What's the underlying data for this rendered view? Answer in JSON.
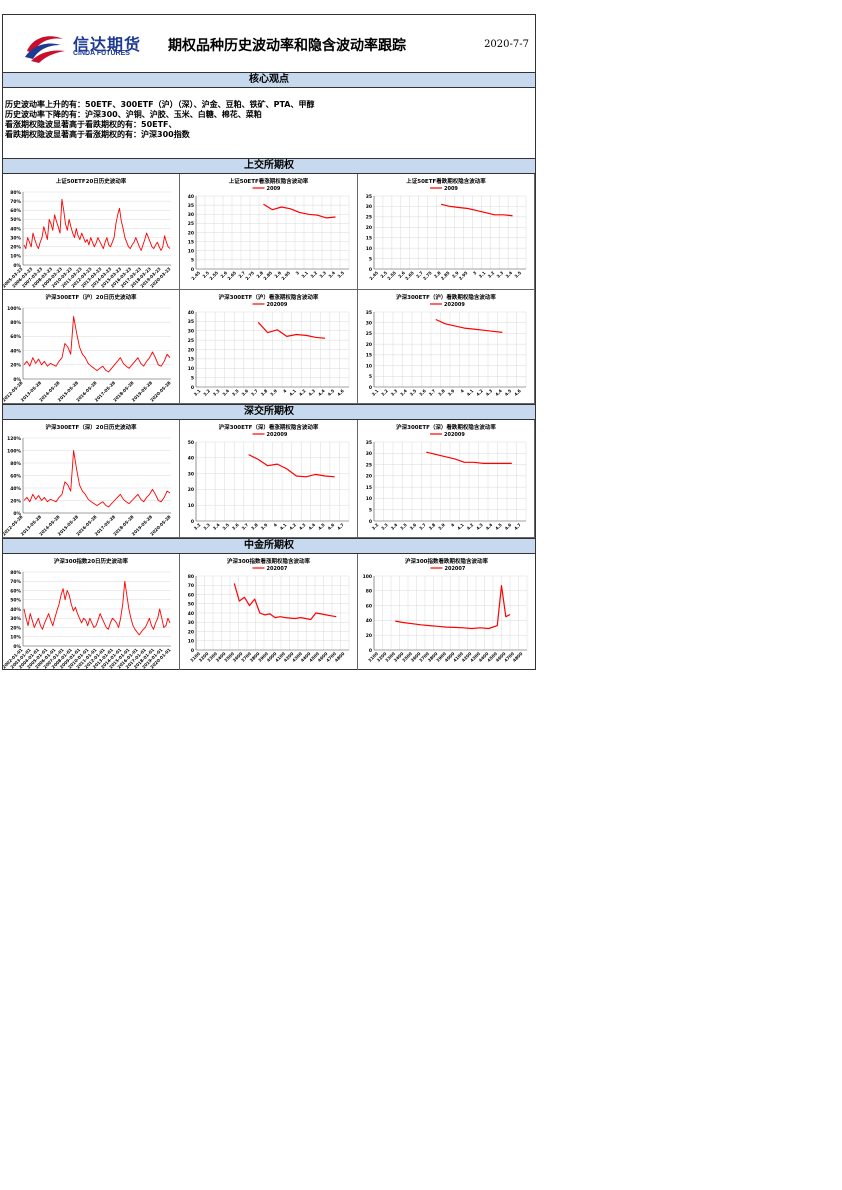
{
  "header": {
    "logo_cn": "信达期货",
    "logo_en": "CINDA FUTURES",
    "title": "期权品种历史波动率和隐含波动率跟踪",
    "date": "2020-7-7"
  },
  "sections": {
    "core": "核心观点",
    "sse": "上交所期权",
    "szse": "深交所期权",
    "cffex": "中金所期权"
  },
  "core_lines": [
    "历史波动率上升的有：50ETF、300ETF（沪）（深）、沪金、豆粕、铁矿、PTA、甲醇",
    "历史波动率下降的有：沪深300、沪铜、沪胶、玉米、白糖、棉花、菜粕",
    "看涨期权隐波显著高于看跌期权的有：50ETF、",
    "看跌期权隐波显著高于看涨期权的有：沪深300指数"
  ],
  "colors": {
    "series": "#ff0000",
    "band": "#c7d9ee",
    "logo": "#1f3a93"
  },
  "chart_data": [
    {
      "type": "line",
      "id": "c1",
      "title": "上证50ETF20日历史波动率",
      "yticks": [
        "80%",
        "70%",
        "60%",
        "50%",
        "40%",
        "30%",
        "20%",
        "10%",
        "0%"
      ],
      "ylim": [
        0,
        0.8
      ],
      "xticks": [
        "2005-03-23",
        "2006-03-23",
        "2007-03-23",
        "2008-03-23",
        "2009-03-23",
        "2010-03-23",
        "2011-03-23",
        "2012-03-23",
        "2013-03-23",
        "2014-03-23",
        "2015-03-23",
        "2016-03-23",
        "2017-03-23",
        "2018-03-23",
        "2019-03-23",
        "2020-03-23"
      ],
      "series": [
        {
          "values": [
            0.22,
            0.18,
            0.3,
            0.25,
            0.2,
            0.35,
            0.28,
            0.22,
            0.18,
            0.25,
            0.3,
            0.42,
            0.35,
            0.28,
            0.5,
            0.45,
            0.38,
            0.55,
            0.48,
            0.42,
            0.35,
            0.72,
            0.6,
            0.45,
            0.38,
            0.5,
            0.42,
            0.35,
            0.3,
            0.4,
            0.32,
            0.28,
            0.35,
            0.3,
            0.25,
            0.28,
            0.22,
            0.3,
            0.25,
            0.2,
            0.24,
            0.3,
            0.26,
            0.22,
            0.18,
            0.25,
            0.3,
            0.22,
            0.2,
            0.25,
            0.3,
            0.45,
            0.55,
            0.62,
            0.48,
            0.4,
            0.3,
            0.25,
            0.2,
            0.18,
            0.22,
            0.25,
            0.3,
            0.25,
            0.2,
            0.16,
            0.22,
            0.28,
            0.35,
            0.3,
            0.25,
            0.2,
            0.18,
            0.22,
            0.25,
            0.2,
            0.16,
            0.2,
            0.32,
            0.25,
            0.2,
            0.18
          ]
        }
      ]
    },
    {
      "type": "line",
      "id": "c2",
      "title": "上证50ETF看涨期权隐含波动率",
      "legend": [
        "2009"
      ],
      "yticks": [
        "40",
        "35",
        "30",
        "25",
        "20",
        "15",
        "10",
        "5",
        "0"
      ],
      "ylim": [
        0,
        40
      ],
      "xticks": [
        "2.45",
        "2.5",
        "2.55",
        "2.6",
        "2.65",
        "2.7",
        "2.75",
        "2.8",
        "2.85",
        "2.9",
        "2.95",
        "3",
        "3.1",
        "3.2",
        "3.3",
        "3.4",
        "3.5"
      ],
      "series": [
        {
          "name": "2009",
          "x": [
            7,
            8,
            9,
            10,
            11,
            12,
            13,
            14,
            15
          ],
          "values": [
            35.5,
            32.5,
            34,
            33,
            31,
            30,
            29.5,
            28,
            28.5
          ]
        }
      ]
    },
    {
      "type": "line",
      "id": "c3",
      "title": "上证50ETF看跌期权隐含波动率",
      "legend": [
        "2009"
      ],
      "yticks": [
        "35",
        "30",
        "25",
        "20",
        "15",
        "10",
        "5",
        "0"
      ],
      "ylim": [
        0,
        35
      ],
      "xticks": [
        "2.45",
        "2.5",
        "2.55",
        "2.6",
        "2.65",
        "2.7",
        "2.75",
        "2.8",
        "2.85",
        "2.9",
        "2.95",
        "3",
        "3.1",
        "3.2",
        "3.3",
        "3.4",
        "3.5"
      ],
      "series": [
        {
          "name": "2009",
          "x": [
            7,
            8,
            9,
            10,
            11,
            12,
            13,
            14,
            15
          ],
          "values": [
            31,
            30,
            29.5,
            29,
            28,
            27,
            26,
            26,
            25.5
          ]
        }
      ]
    },
    {
      "type": "line",
      "id": "c4",
      "title": "沪深300ETF（沪）20日历史波动率",
      "yticks": [
        "100%",
        "80%",
        "60%",
        "40%",
        "20%",
        "0%"
      ],
      "ylim": [
        0,
        1
      ],
      "xticks": [
        "2012-05-28",
        "2013-05-28",
        "2014-05-28",
        "2015-05-28",
        "2016-05-28",
        "2017-05-28",
        "2018-05-28",
        "2019-05-28",
        "2020-05-28"
      ],
      "series": [
        {
          "values": [
            0.2,
            0.25,
            0.18,
            0.3,
            0.22,
            0.28,
            0.2,
            0.25,
            0.18,
            0.22,
            0.2,
            0.18,
            0.25,
            0.3,
            0.5,
            0.45,
            0.35,
            0.88,
            0.65,
            0.45,
            0.35,
            0.3,
            0.22,
            0.18,
            0.15,
            0.12,
            0.15,
            0.18,
            0.12,
            0.1,
            0.15,
            0.2,
            0.25,
            0.3,
            0.22,
            0.18,
            0.15,
            0.2,
            0.25,
            0.3,
            0.22,
            0.18,
            0.25,
            0.3,
            0.38,
            0.3,
            0.2,
            0.18,
            0.25,
            0.35,
            0.3
          ]
        }
      ]
    },
    {
      "type": "line",
      "id": "c5",
      "title": "沪深300ETF（沪）看涨期权隐含波动率",
      "legend": [
        "202009"
      ],
      "yticks": [
        "40",
        "35",
        "30",
        "25",
        "20",
        "15",
        "10",
        "5",
        "0"
      ],
      "ylim": [
        0,
        40
      ],
      "xticks": [
        "3.1",
        "3.2",
        "3.3",
        "3.4",
        "3.5",
        "3.6",
        "3.7",
        "3.8",
        "3.9",
        "4",
        "4.1",
        "4.2",
        "4.3",
        "4.4",
        "4.5",
        "4.6"
      ],
      "series": [
        {
          "name": "202009",
          "x": [
            6,
            7,
            8,
            9,
            10,
            11,
            12,
            13
          ],
          "values": [
            34.5,
            29,
            30.5,
            27,
            28,
            27.5,
            26.5,
            26
          ]
        }
      ]
    },
    {
      "type": "line",
      "id": "c6",
      "title": "沪深300ETF（沪）看跌期权隐含波动率",
      "legend": [
        "202009"
      ],
      "yticks": [
        "35",
        "30",
        "25",
        "20",
        "15",
        "10",
        "5",
        "0"
      ],
      "ylim": [
        0,
        35
      ],
      "xticks": [
        "3.1",
        "3.2",
        "3.3",
        "3.4",
        "3.5",
        "3.6",
        "3.7",
        "3.8",
        "3.9",
        "4",
        "4.1",
        "4.2",
        "4.3",
        "4.4",
        "4.5",
        "4.6"
      ],
      "series": [
        {
          "name": "202009",
          "x": [
            6,
            7,
            8,
            9,
            10,
            11,
            12,
            13
          ],
          "values": [
            31.5,
            29.5,
            28.5,
            27.5,
            27,
            26.5,
            26,
            25.5
          ]
        }
      ]
    },
    {
      "type": "line",
      "id": "c7",
      "title": "沪深300ETF（深）20日历史波动率",
      "yticks": [
        "120%",
        "100%",
        "80%",
        "60%",
        "40%",
        "20%",
        "0%"
      ],
      "ylim": [
        0,
        1.2
      ],
      "xticks": [
        "2012-05-28",
        "2013-05-28",
        "2014-05-28",
        "2015-05-28",
        "2016-05-28",
        "2017-05-28",
        "2018-05-28",
        "2019-05-28",
        "2020-05-28"
      ],
      "series": [
        {
          "values": [
            0.2,
            0.25,
            0.18,
            0.3,
            0.22,
            0.28,
            0.2,
            0.25,
            0.18,
            0.22,
            0.2,
            0.18,
            0.25,
            0.3,
            0.5,
            0.45,
            0.35,
            1.0,
            0.7,
            0.45,
            0.35,
            0.3,
            0.22,
            0.18,
            0.15,
            0.12,
            0.15,
            0.18,
            0.12,
            0.1,
            0.15,
            0.2,
            0.25,
            0.3,
            0.22,
            0.18,
            0.15,
            0.2,
            0.25,
            0.3,
            0.22,
            0.18,
            0.25,
            0.3,
            0.38,
            0.3,
            0.2,
            0.18,
            0.25,
            0.35,
            0.32
          ]
        }
      ]
    },
    {
      "type": "line",
      "id": "c8",
      "title": "沪深300ETF（深）看涨期权隐含波动率",
      "legend": [
        "202009"
      ],
      "yticks": [
        "50",
        "40",
        "30",
        "20",
        "10",
        "0"
      ],
      "ylim": [
        0,
        50
      ],
      "xticks": [
        "3.2",
        "3.3",
        "3.4",
        "3.5",
        "3.6",
        "3.7",
        "3.8",
        "3.9",
        "4",
        "4.1",
        "4.2",
        "4.3",
        "4.4",
        "4.5",
        "4.6",
        "4.7"
      ],
      "series": [
        {
          "name": "202009",
          "x": [
            5,
            6,
            7,
            8,
            9,
            10,
            11,
            12,
            13,
            14
          ],
          "values": [
            42,
            39,
            35,
            36,
            33,
            28.5,
            28,
            29.5,
            28.5,
            28
          ]
        }
      ]
    },
    {
      "type": "line",
      "id": "c9",
      "title": "沪深300ETF（深）看跌期权隐含波动率",
      "legend": [
        "202009"
      ],
      "yticks": [
        "35",
        "30",
        "25",
        "20",
        "15",
        "10",
        "5",
        "0"
      ],
      "ylim": [
        0,
        35
      ],
      "xticks": [
        "3.2",
        "3.3",
        "3.4",
        "3.5",
        "3.6",
        "3.7",
        "3.8",
        "3.9",
        "4",
        "4.1",
        "4.2",
        "4.3",
        "4.4",
        "4.5",
        "4.6",
        "4.7"
      ],
      "series": [
        {
          "name": "202009",
          "x": [
            5,
            6,
            7,
            8,
            9,
            10,
            11,
            12,
            13,
            14
          ],
          "values": [
            30.5,
            29.5,
            28.5,
            27.5,
            26,
            26,
            25.5,
            25.5,
            25.5,
            25.5
          ]
        }
      ]
    },
    {
      "type": "line",
      "id": "c10",
      "title": "沪深300指数20日历史波动率",
      "yticks": [
        "80%",
        "70%",
        "60%",
        "50%",
        "40%",
        "30%",
        "20%",
        "10%",
        "0%"
      ],
      "ylim": [
        0,
        0.8
      ],
      "xticks": [
        "2002-01-01",
        "2003-01-01",
        "2004-01-01",
        "2005-01-01",
        "2006-01-01",
        "2007-01-01",
        "2008-01-01",
        "2009-01-01",
        "2010-01-01",
        "2011-01-01",
        "2012-01-01",
        "2013-01-01",
        "2014-01-01",
        "2015-01-01",
        "2016-01-01",
        "2017-01-01",
        "2018-01-01",
        "2019-01-01",
        "2020-01-01"
      ],
      "series": [
        {
          "values": [
            0.4,
            0.3,
            0.22,
            0.35,
            0.28,
            0.2,
            0.25,
            0.3,
            0.22,
            0.18,
            0.25,
            0.3,
            0.35,
            0.28,
            0.22,
            0.3,
            0.38,
            0.45,
            0.55,
            0.62,
            0.5,
            0.6,
            0.55,
            0.45,
            0.38,
            0.42,
            0.35,
            0.3,
            0.25,
            0.3,
            0.28,
            0.22,
            0.3,
            0.25,
            0.2,
            0.22,
            0.28,
            0.35,
            0.3,
            0.25,
            0.2,
            0.18,
            0.25,
            0.3,
            0.28,
            0.25,
            0.2,
            0.3,
            0.45,
            0.7,
            0.55,
            0.4,
            0.3,
            0.22,
            0.18,
            0.15,
            0.12,
            0.15,
            0.18,
            0.2,
            0.25,
            0.3,
            0.22,
            0.18,
            0.25,
            0.3,
            0.4,
            0.3,
            0.2,
            0.22,
            0.3,
            0.25
          ]
        }
      ]
    },
    {
      "type": "line",
      "id": "c11",
      "title": "沪深300指数看涨期权隐含波动率",
      "legend": [
        "202007"
      ],
      "yticks": [
        "80",
        "70",
        "60",
        "50",
        "40",
        "30",
        "20",
        "10",
        "0"
      ],
      "ylim": [
        0,
        80
      ],
      "xticks": [
        "3100",
        "3200",
        "3300",
        "3400",
        "3500",
        "3600",
        "3700",
        "3800",
        "3900",
        "4000",
        "4100",
        "4200",
        "4300",
        "4400",
        "4500",
        "4600",
        "4700",
        "4800"
      ],
      "series": [
        {
          "name": "202007",
          "x": [
            4,
            4.6,
            5.2,
            5.8,
            6.4,
            7,
            7.6,
            8.2,
            8.8,
            9.4,
            10,
            10.6,
            11.2,
            11.8,
            12.4,
            13,
            13.6,
            14.2,
            14.8,
            15.4,
            16
          ],
          "values": [
            72,
            53,
            57,
            48,
            55,
            40,
            38,
            39,
            35,
            36,
            35,
            34.5,
            34,
            35,
            34,
            33,
            40,
            39,
            38,
            37,
            36
          ]
        }
      ]
    },
    {
      "type": "line",
      "id": "c12",
      "title": "沪深300指数看跌期权隐含波动率",
      "legend": [
        "202007"
      ],
      "yticks": [
        "100",
        "80",
        "60",
        "40",
        "20",
        "0"
      ],
      "ylim": [
        0,
        100
      ],
      "xticks": [
        "3100",
        "3200",
        "3300",
        "3400",
        "3500",
        "3600",
        "3700",
        "3800",
        "3900",
        "4000",
        "4100",
        "4200",
        "4300",
        "4400",
        "4500",
        "4600",
        "4700",
        "4800"
      ],
      "series": [
        {
          "name": "202007",
          "x": [
            2,
            3,
            4,
            5,
            6,
            7,
            8,
            9,
            10,
            11,
            12,
            13,
            14,
            14.5,
            15,
            15.5
          ],
          "values": [
            39,
            37,
            35.5,
            34,
            33,
            32,
            31,
            30.5,
            30,
            29,
            30,
            29,
            33,
            87,
            45,
            48
          ]
        }
      ]
    }
  ]
}
